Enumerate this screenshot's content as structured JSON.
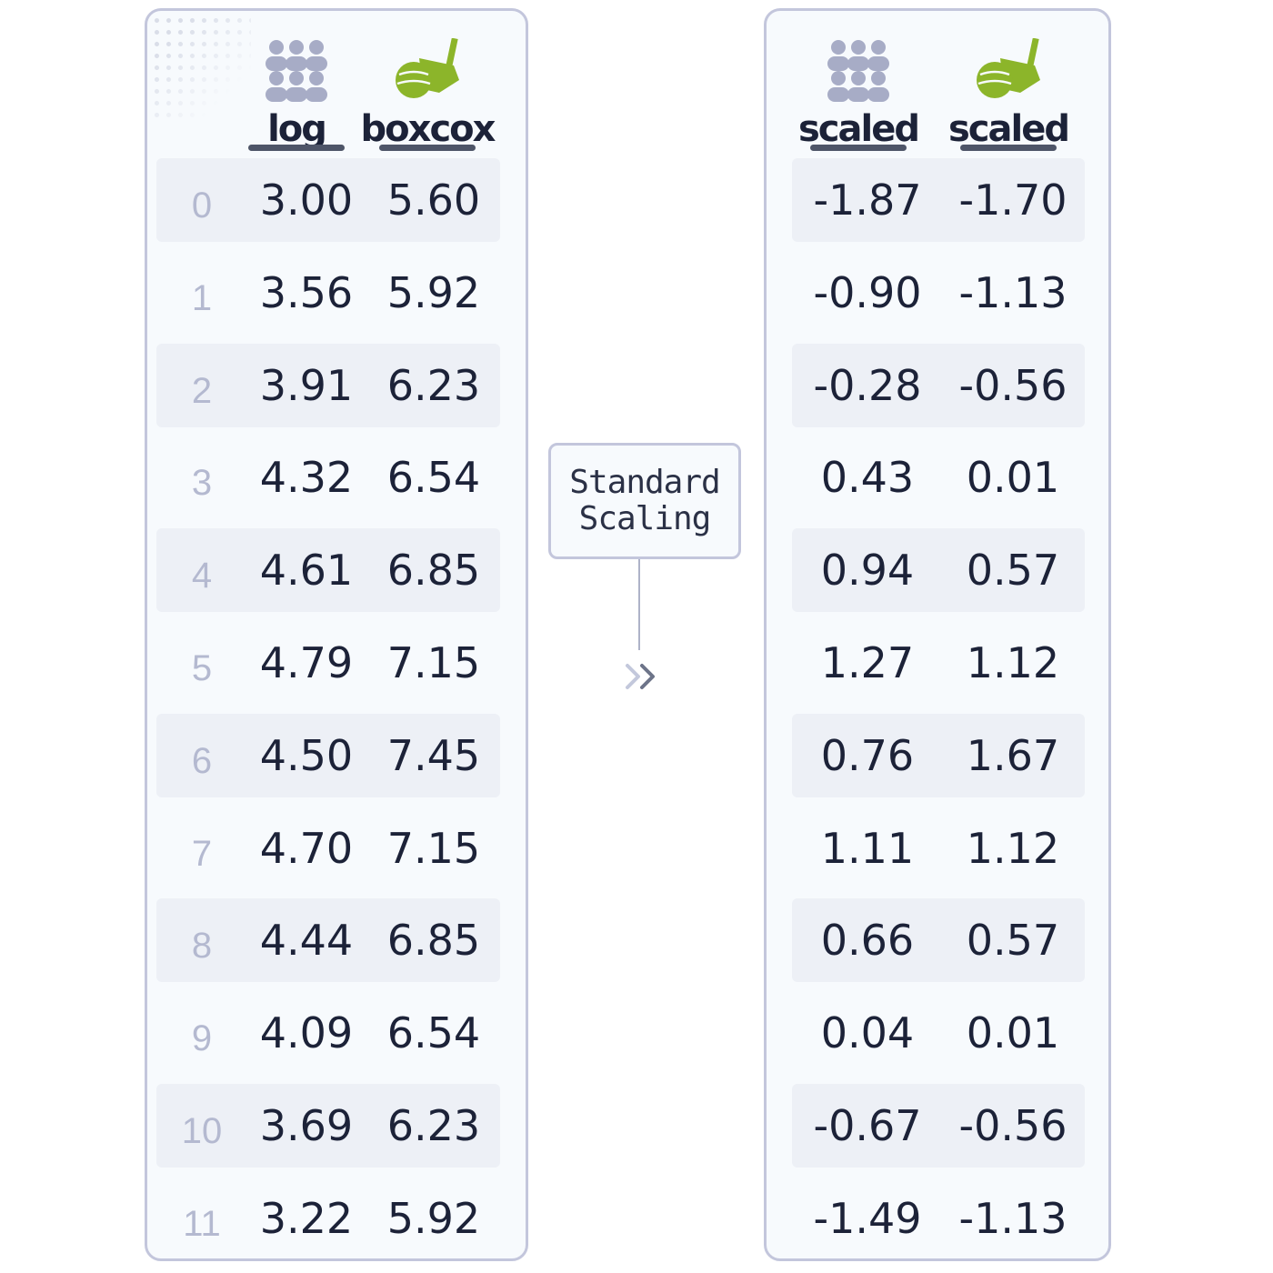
{
  "left_table": {
    "columns": [
      {
        "label": "log",
        "icon": "people-group-icon"
      },
      {
        "label": "boxcox",
        "icon": "golf-club-ball-icon"
      }
    ],
    "rows": [
      {
        "index": "0",
        "log": "3.00",
        "boxcox": "5.60"
      },
      {
        "index": "1",
        "log": "3.56",
        "boxcox": "5.92"
      },
      {
        "index": "2",
        "log": "3.91",
        "boxcox": "6.23"
      },
      {
        "index": "3",
        "log": "4.32",
        "boxcox": "6.54"
      },
      {
        "index": "4",
        "log": "4.61",
        "boxcox": "6.85"
      },
      {
        "index": "5",
        "log": "4.79",
        "boxcox": "7.15"
      },
      {
        "index": "6",
        "log": "4.50",
        "boxcox": "7.45"
      },
      {
        "index": "7",
        "log": "4.70",
        "boxcox": "7.15"
      },
      {
        "index": "8",
        "log": "4.44",
        "boxcox": "6.85"
      },
      {
        "index": "9",
        "log": "4.09",
        "boxcox": "6.54"
      },
      {
        "index": "10",
        "log": "3.69",
        "boxcox": "6.23"
      },
      {
        "index": "11",
        "log": "3.22",
        "boxcox": "5.92"
      }
    ]
  },
  "right_table": {
    "columns": [
      {
        "label": "scaled",
        "icon": "people-group-icon"
      },
      {
        "label": "scaled",
        "icon": "golf-club-ball-icon"
      }
    ],
    "rows": [
      {
        "a": "-1.87",
        "b": "-1.70"
      },
      {
        "a": "-0.90",
        "b": "-1.13"
      },
      {
        "a": "-0.28",
        "b": "-0.56"
      },
      {
        "a": "0.43",
        "b": "0.01"
      },
      {
        "a": "0.94",
        "b": "0.57"
      },
      {
        "a": "1.27",
        "b": "1.12"
      },
      {
        "a": "0.76",
        "b": "1.67"
      },
      {
        "a": "1.11",
        "b": "1.12"
      },
      {
        "a": "0.66",
        "b": "0.57"
      },
      {
        "a": "0.04",
        "b": "0.01"
      },
      {
        "a": "-0.67",
        "b": "-0.56"
      },
      {
        "a": "-1.49",
        "b": "-1.13"
      }
    ]
  },
  "transform": {
    "line1": "Standard",
    "line2": "Scaling",
    "arrow_icon": "double-chevron-right-icon"
  },
  "colors": {
    "text": "#1c2238",
    "index_text": "#b4b9d0",
    "panel_border": "#c3c6dc",
    "people_icon": "#a7acc6",
    "golf_icon": "#8cb52a"
  }
}
